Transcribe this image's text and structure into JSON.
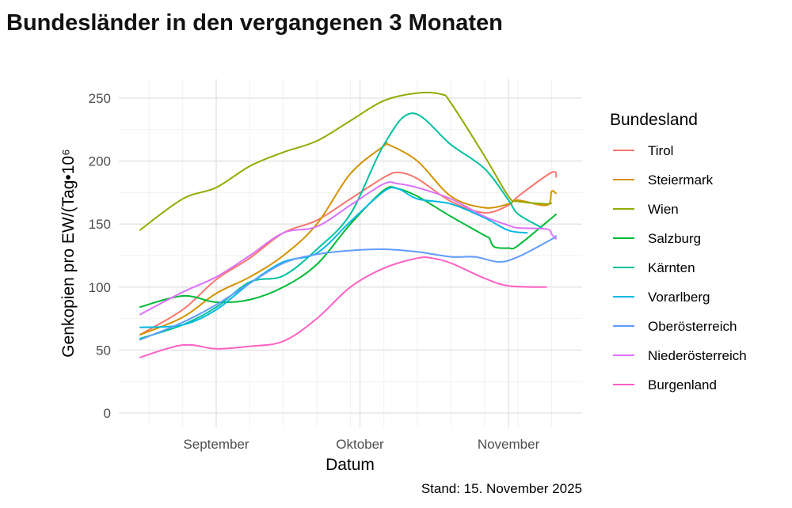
{
  "chart_data": {
    "type": "line",
    "title": "Bundesländer in den vergangenen 3 Monaten",
    "xlabel": "Datum",
    "ylabel": "Genkopien pro EW/(Tag•10⁶",
    "caption": "Stand: 15. November 2025",
    "ylim": [
      0,
      250
    ],
    "yticks": [
      0,
      50,
      100,
      150,
      200,
      250
    ],
    "xticks": [
      {
        "date": "2025-09-01",
        "label": "September"
      },
      {
        "date": "2025-10-01",
        "label": "Oktober"
      },
      {
        "date": "2025-11-01",
        "label": "November"
      }
    ],
    "grid": true,
    "legend": {
      "title": "Bundesland",
      "position": "right"
    },
    "series": [
      {
        "name": "Tirol",
        "color": "#F8766D",
        "points": [
          [
            "2025-08-16",
            62
          ],
          [
            "2025-08-25",
            82
          ],
          [
            "2025-09-01",
            106
          ],
          [
            "2025-09-08",
            123
          ],
          [
            "2025-09-15",
            143
          ],
          [
            "2025-09-22",
            153
          ],
          [
            "2025-09-29",
            170
          ],
          [
            "2025-10-06",
            187
          ],
          [
            "2025-10-09",
            191
          ],
          [
            "2025-10-13",
            186
          ],
          [
            "2025-10-20",
            168
          ],
          [
            "2025-10-27",
            159
          ],
          [
            "2025-11-01",
            165
          ],
          [
            "2025-11-03",
            172
          ],
          [
            "2025-11-10",
            191
          ],
          [
            "2025-11-11",
            187
          ]
        ]
      },
      {
        "name": "Steiermark",
        "color": "#D39200",
        "points": [
          [
            "2025-08-16",
            62
          ],
          [
            "2025-08-25",
            76
          ],
          [
            "2025-09-01",
            95
          ],
          [
            "2025-09-08",
            108
          ],
          [
            "2025-09-15",
            125
          ],
          [
            "2025-09-22",
            150
          ],
          [
            "2025-09-29",
            190
          ],
          [
            "2025-10-06",
            212
          ],
          [
            "2025-10-07",
            213
          ],
          [
            "2025-10-13",
            200
          ],
          [
            "2025-10-20",
            172
          ],
          [
            "2025-10-27",
            163
          ],
          [
            "2025-11-01",
            166
          ],
          [
            "2025-11-03",
            169
          ],
          [
            "2025-11-09",
            165
          ],
          [
            "2025-11-10",
            176
          ],
          [
            "2025-11-11",
            174
          ]
        ]
      },
      {
        "name": "Wien",
        "color": "#93AA00",
        "points": [
          [
            "2025-08-16",
            145
          ],
          [
            "2025-08-25",
            170
          ],
          [
            "2025-09-01",
            179
          ],
          [
            "2025-09-08",
            196
          ],
          [
            "2025-09-15",
            207
          ],
          [
            "2025-09-22",
            216
          ],
          [
            "2025-09-29",
            232
          ],
          [
            "2025-10-06",
            248
          ],
          [
            "2025-10-13",
            254
          ],
          [
            "2025-10-18",
            253
          ],
          [
            "2025-10-20",
            246
          ],
          [
            "2025-10-27",
            204
          ],
          [
            "2025-11-01",
            172
          ],
          [
            "2025-11-03",
            168
          ],
          [
            "2025-11-09",
            166
          ],
          [
            "2025-11-10",
            167
          ]
        ]
      },
      {
        "name": "Salzburg",
        "color": "#00BA38",
        "points": [
          [
            "2025-08-16",
            84
          ],
          [
            "2025-08-25",
            93
          ],
          [
            "2025-09-01",
            88
          ],
          [
            "2025-09-08",
            90
          ],
          [
            "2025-09-15",
            100
          ],
          [
            "2025-09-22",
            118
          ],
          [
            "2025-09-29",
            150
          ],
          [
            "2025-10-06",
            177
          ],
          [
            "2025-10-09",
            178
          ],
          [
            "2025-10-13",
            172
          ],
          [
            "2025-10-20",
            156
          ],
          [
            "2025-10-27",
            141
          ],
          [
            "2025-10-28",
            139
          ],
          [
            "2025-10-29",
            132
          ],
          [
            "2025-11-01",
            131
          ],
          [
            "2025-11-03",
            133
          ],
          [
            "2025-11-11",
            158
          ]
        ]
      },
      {
        "name": "Kärnten",
        "color": "#00C19F",
        "points": [
          [
            "2025-08-16",
            59
          ],
          [
            "2025-08-25",
            70
          ],
          [
            "2025-09-01",
            84
          ],
          [
            "2025-09-08",
            104
          ],
          [
            "2025-09-15",
            109
          ],
          [
            "2025-09-22",
            130
          ],
          [
            "2025-09-29",
            158
          ],
          [
            "2025-10-06",
            213
          ],
          [
            "2025-10-12",
            238
          ],
          [
            "2025-10-20",
            213
          ],
          [
            "2025-10-27",
            194
          ],
          [
            "2025-11-01",
            169
          ],
          [
            "2025-11-03",
            158
          ],
          [
            "2025-11-08",
            147
          ]
        ]
      },
      {
        "name": "Vorarlberg",
        "color": "#00B9E3",
        "points": [
          [
            "2025-08-16",
            68
          ],
          [
            "2025-08-25",
            70
          ],
          [
            "2025-09-01",
            82
          ],
          [
            "2025-09-08",
            103
          ],
          [
            "2025-09-15",
            120
          ],
          [
            "2025-09-22",
            127
          ],
          [
            "2025-09-29",
            152
          ],
          [
            "2025-10-06",
            176
          ],
          [
            "2025-10-09",
            178
          ],
          [
            "2025-10-13",
            170
          ],
          [
            "2025-10-20",
            166
          ],
          [
            "2025-10-27",
            155
          ],
          [
            "2025-11-01",
            145
          ],
          [
            "2025-11-05",
            143
          ]
        ]
      },
      {
        "name": "Oberösterreich",
        "color": "#619CFF",
        "points": [
          [
            "2025-08-16",
            58
          ],
          [
            "2025-08-25",
            72
          ],
          [
            "2025-09-01",
            86
          ],
          [
            "2025-09-08",
            103
          ],
          [
            "2025-09-15",
            119
          ],
          [
            "2025-09-22",
            126
          ],
          [
            "2025-09-29",
            129
          ],
          [
            "2025-10-06",
            130
          ],
          [
            "2025-10-13",
            128
          ],
          [
            "2025-10-20",
            124
          ],
          [
            "2025-10-25",
            124
          ],
          [
            "2025-10-30",
            120
          ],
          [
            "2025-11-03",
            124
          ],
          [
            "2025-11-10",
            138
          ],
          [
            "2025-11-11",
            141
          ]
        ]
      },
      {
        "name": "Niederösterreich",
        "color": "#DB72FB",
        "points": [
          [
            "2025-08-16",
            78
          ],
          [
            "2025-08-25",
            96
          ],
          [
            "2025-09-01",
            108
          ],
          [
            "2025-09-08",
            125
          ],
          [
            "2025-09-15",
            143
          ],
          [
            "2025-09-22",
            148
          ],
          [
            "2025-09-29",
            165
          ],
          [
            "2025-10-06",
            182
          ],
          [
            "2025-10-09",
            182
          ],
          [
            "2025-10-13",
            179
          ],
          [
            "2025-10-20",
            170
          ],
          [
            "2025-10-27",
            156
          ],
          [
            "2025-11-01",
            149
          ],
          [
            "2025-11-03",
            147
          ],
          [
            "2025-11-09",
            146
          ],
          [
            "2025-11-10",
            142
          ],
          [
            "2025-11-11",
            138
          ]
        ]
      },
      {
        "name": "Burgenland",
        "color": "#FF61C3",
        "points": [
          [
            "2025-08-16",
            44
          ],
          [
            "2025-08-25",
            54
          ],
          [
            "2025-09-01",
            51
          ],
          [
            "2025-09-08",
            53
          ],
          [
            "2025-09-15",
            57
          ],
          [
            "2025-09-22",
            75
          ],
          [
            "2025-09-29",
            100
          ],
          [
            "2025-10-06",
            115
          ],
          [
            "2025-10-13",
            123
          ],
          [
            "2025-10-16",
            123
          ],
          [
            "2025-10-20",
            119
          ],
          [
            "2025-10-27",
            107
          ],
          [
            "2025-11-01",
            101
          ],
          [
            "2025-11-09",
            100
          ]
        ]
      }
    ]
  }
}
